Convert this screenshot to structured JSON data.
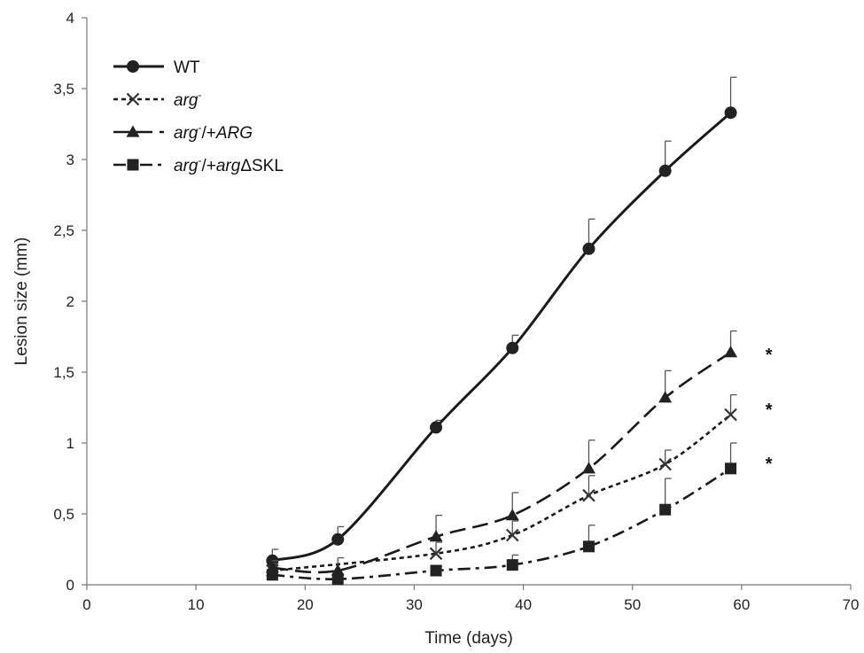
{
  "chart_data": {
    "type": "line",
    "xlabel": "Time (days)",
    "ylabel": "Lesion size (mm)",
    "xlim": [
      0,
      70
    ],
    "ylim": [
      0,
      4
    ],
    "x_ticks": [
      "0",
      "10",
      "20",
      "30",
      "40",
      "50",
      "60",
      "70"
    ],
    "y_ticks": [
      "0",
      "0,5",
      "1",
      "1,5",
      "2",
      "2,5",
      "3",
      "3,5",
      "4"
    ],
    "grid": false,
    "legend_position": "top-left",
    "x": [
      17,
      23,
      32,
      39,
      46,
      53,
      59
    ],
    "series": [
      {
        "name": "WT",
        "legend": {
          "italic": "",
          "sup": "",
          "rest": "WT"
        },
        "marker": "circle",
        "dash": "solid",
        "values": [
          0.17,
          0.32,
          1.11,
          1.67,
          2.37,
          2.92,
          3.33
        ],
        "errors": [
          0.08,
          0.09,
          0.05,
          0.09,
          0.21,
          0.21,
          0.25
        ]
      },
      {
        "name": "arg-",
        "legend": {
          "italic": "arg",
          "sup": "-",
          "rest": ""
        },
        "marker": "x",
        "dash": "short-dash",
        "values": [
          0.1,
          0.22,
          0.35,
          0.63,
          0.85,
          1.2
        ],
        "x": [
          17,
          32,
          39,
          46,
          53,
          59
        ],
        "errors": [
          0.05,
          0.08,
          0.1,
          0.14,
          0.1,
          0.14
        ]
      },
      {
        "name": "arg-/+ARG",
        "legend": {
          "italic": "arg",
          "sup": "-",
          "rest": "/+ARG"
        },
        "marker": "triangle",
        "dash": "long-dash",
        "values": [
          0.12,
          0.1,
          0.34,
          0.49,
          0.82,
          1.32,
          1.64
        ],
        "errors": [
          0.05,
          0.09,
          0.15,
          0.16,
          0.2,
          0.19,
          0.15
        ]
      },
      {
        "name": "arg-/+argΔSKL",
        "legend": {
          "italic": "arg",
          "sup": "-",
          "rest": "/+argΔSKL"
        },
        "marker": "square",
        "dash": "dash-dot",
        "values": [
          0.07,
          0.04,
          0.1,
          0.14,
          0.27,
          0.53,
          0.82
        ],
        "errors": [
          0.03,
          0.03,
          0.03,
          0.07,
          0.15,
          0.22,
          0.18
        ]
      }
    ],
    "annotations": [
      {
        "text": "*",
        "x": 62.5,
        "y": 1.67
      },
      {
        "text": "*",
        "x": 62.5,
        "y": 1.28
      },
      {
        "text": "*",
        "x": 62.5,
        "y": 0.9
      }
    ]
  }
}
